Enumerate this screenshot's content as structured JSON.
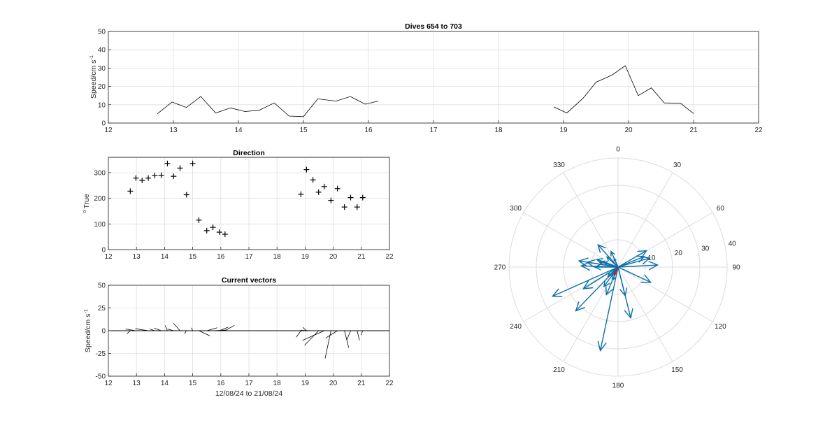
{
  "colors": {
    "arrow": "#0a6fa8",
    "mean_arrow": "#d0122f",
    "trace": "#000000"
  },
  "chart_data": [
    {
      "id": "speed",
      "type": "line",
      "title": "Dives 654 to 703",
      "xlabel": "",
      "ylabel": "Speed/cm s",
      "ylabel_exp": "-1",
      "xlim": [
        12,
        22
      ],
      "ylim": [
        0,
        50
      ],
      "xticks": [
        12,
        13,
        14,
        15,
        16,
        17,
        18,
        19,
        20,
        21,
        22
      ],
      "yticks": [
        0,
        10,
        20,
        30,
        40,
        50
      ],
      "grid": true,
      "series": [
        {
          "x": [
            12.75,
            12.98,
            13.2,
            13.42,
            13.65,
            13.88,
            14.1,
            14.32,
            14.55,
            14.78,
            15.0,
            15.22,
            15.5,
            15.72,
            15.95,
            16.15
          ],
          "y": [
            5,
            11.5,
            8.5,
            14.5,
            5.5,
            8.3,
            6.3,
            7,
            11,
            3.8,
            3.5,
            13.2,
            12,
            14.5,
            10.3,
            12
          ]
        },
        {
          "x": [
            18.85,
            19.05,
            19.3,
            19.5,
            19.75,
            19.95,
            20.15,
            20.35,
            20.55,
            20.8,
            21.0
          ],
          "y": [
            8.8,
            5.5,
            13.5,
            22.3,
            26.3,
            31.3,
            15,
            19.2,
            11,
            10.8,
            5.2
          ]
        }
      ]
    },
    {
      "id": "direction",
      "type": "scatter",
      "title": "Direction",
      "xlabel": "",
      "ylabel": "True",
      "ylabel_prefix": "o",
      "xlim": [
        12,
        22
      ],
      "ylim": [
        0,
        360
      ],
      "xticks": [
        12,
        13,
        14,
        15,
        16,
        17,
        18,
        19,
        20,
        21,
        22
      ],
      "yticks": [
        0,
        100,
        200,
        300
      ],
      "grid": true,
      "x": [
        12.78,
        12.98,
        13.2,
        13.42,
        13.65,
        13.88,
        14.1,
        14.32,
        14.55,
        14.78,
        15.0,
        15.22,
        15.5,
        15.72,
        15.95,
        16.15,
        18.85,
        19.05,
        19.28,
        19.48,
        19.68,
        19.92,
        20.15,
        20.4,
        20.62,
        20.85,
        21.05
      ],
      "y": [
        228,
        279,
        270,
        279,
        289,
        290,
        336,
        286,
        318,
        214,
        336,
        115,
        74,
        87,
        68,
        60,
        216,
        312,
        272,
        224,
        246,
        192,
        238,
        166,
        203,
        166,
        203
      ]
    },
    {
      "id": "vectors",
      "type": "line",
      "title": "Current vectors",
      "xlabel": "12/08/24 to 21/08/24",
      "ylabel": "Speed/cm s",
      "ylabel_exp": "-1",
      "xlim": [
        12,
        22
      ],
      "ylim": [
        -50,
        50
      ],
      "xticks": [
        12,
        13,
        14,
        15,
        16,
        17,
        18,
        19,
        20,
        21,
        22
      ],
      "yticks": [
        -50,
        -25,
        0,
        25,
        50
      ],
      "grid": true,
      "note": "stick plot; each stick starts at (x,0) and points toward direction with length = speed",
      "x": [
        12.78,
        12.98,
        13.2,
        13.42,
        13.65,
        13.88,
        14.1,
        14.32,
        14.55,
        14.78,
        15.0,
        15.22,
        15.5,
        15.72,
        15.95,
        16.15,
        18.85,
        19.05,
        19.28,
        19.48,
        19.68,
        19.92,
        20.15,
        20.4,
        20.62,
        20.85,
        21.05
      ],
      "speed": [
        5,
        11.5,
        8.5,
        14.5,
        5.5,
        8.3,
        6.3,
        7,
        11,
        3.8,
        3.5,
        13.2,
        12,
        14.5,
        10.3,
        12,
        8.8,
        5.5,
        13.5,
        22.3,
        26.3,
        31.3,
        15,
        19.2,
        11,
        10.8,
        5.2
      ],
      "direction": [
        228,
        279,
        270,
        279,
        289,
        290,
        336,
        286,
        318,
        214,
        336,
        115,
        74,
        87,
        68,
        60,
        216,
        312,
        272,
        224,
        246,
        192,
        238,
        166,
        203,
        166,
        203
      ]
    },
    {
      "id": "polar",
      "type": "polar",
      "title": "",
      "rlim": [
        0,
        40
      ],
      "rticks": [
        10,
        20,
        30,
        40
      ],
      "theta_ticks": [
        0,
        30,
        60,
        90,
        120,
        150,
        180,
        210,
        240,
        270,
        300,
        330
      ],
      "direction": [
        228,
        279,
        270,
        279,
        289,
        290,
        336,
        286,
        318,
        214,
        336,
        115,
        74,
        87,
        68,
        60,
        216,
        312,
        272,
        224,
        246,
        192,
        238,
        166,
        203,
        166,
        203
      ],
      "speed": [
        5,
        11.5,
        8.5,
        14.5,
        5.5,
        8.3,
        6.3,
        7,
        11,
        3.8,
        3.5,
        13.2,
        12,
        14.5,
        10.3,
        12,
        8.8,
        5.5,
        13.5,
        22.3,
        26.3,
        31.3,
        15,
        19.2,
        11,
        10.8,
        5.2
      ],
      "mean_direction": 205,
      "mean_speed": 3.2
    }
  ]
}
